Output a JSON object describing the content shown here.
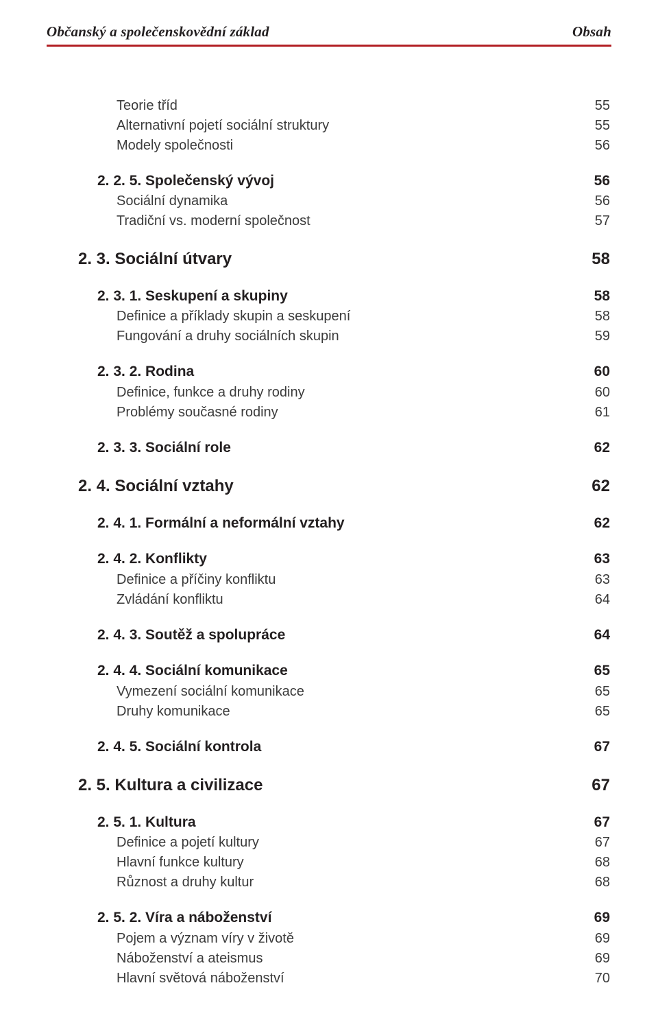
{
  "header": {
    "left": "Občanský a společenskovědní základ",
    "right": "Obsah"
  },
  "toc": [
    {
      "level": 3,
      "weight": "light",
      "label": "Teorie tříd",
      "page": "55",
      "mt": 0
    },
    {
      "level": 3,
      "weight": "light",
      "label": "Alternativní pojetí sociální struktury",
      "page": "55"
    },
    {
      "level": 3,
      "weight": "light",
      "label": "Modely společnosti",
      "page": "56"
    },
    {
      "level": 2,
      "weight": "bold",
      "label": "2. 2. 5. Společenský vývoj",
      "page": "56"
    },
    {
      "level": 3,
      "weight": "light",
      "label": "Sociální dynamika",
      "page": "56"
    },
    {
      "level": 3,
      "weight": "light",
      "label": "Tradiční vs. moderní společnost",
      "page": "57"
    },
    {
      "level": 1,
      "weight": "heavy",
      "label": "2. 3. Sociální útvary",
      "page": "58"
    },
    {
      "level": 2,
      "weight": "bold",
      "label": "2. 3. 1. Seskupení a skupiny",
      "page": "58"
    },
    {
      "level": 3,
      "weight": "light",
      "label": "Definice a příklady skupin a seskupení",
      "page": "58"
    },
    {
      "level": 3,
      "weight": "light",
      "label": "Fungování a druhy sociálních skupin",
      "page": "59"
    },
    {
      "level": 2,
      "weight": "bold",
      "label": "2. 3. 2. Rodina",
      "page": "60"
    },
    {
      "level": 3,
      "weight": "light",
      "label": "Definice, funkce a druhy rodiny",
      "page": "60"
    },
    {
      "level": 3,
      "weight": "light",
      "label": "Problémy současné rodiny",
      "page": "61"
    },
    {
      "level": 2,
      "weight": "bold",
      "label": "2. 3. 3. Sociální role",
      "page": "62"
    },
    {
      "level": 1,
      "weight": "heavy",
      "label": "2. 4. Sociální vztahy",
      "page": "62"
    },
    {
      "level": 2,
      "weight": "bold",
      "label": "2. 4. 1. Formální a neformální vztahy",
      "page": "62"
    },
    {
      "level": 2,
      "weight": "bold",
      "label": "2. 4. 2. Konflikty",
      "page": "63"
    },
    {
      "level": 3,
      "weight": "light",
      "label": "Definice a příčiny konfliktu",
      "page": "63"
    },
    {
      "level": 3,
      "weight": "light",
      "label": "Zvládání konfliktu",
      "page": "64"
    },
    {
      "level": 2,
      "weight": "bold",
      "label": "2. 4. 3. Soutěž a spolupráce",
      "page": "64"
    },
    {
      "level": 2,
      "weight": "bold",
      "label": "2. 4. 4. Sociální komunikace",
      "page": "65"
    },
    {
      "level": 3,
      "weight": "light",
      "label": "Vymezení sociální komunikace",
      "page": "65"
    },
    {
      "level": 3,
      "weight": "light",
      "label": "Druhy komunikace",
      "page": "65"
    },
    {
      "level": 2,
      "weight": "bold",
      "label": "2. 4. 5. Sociální kontrola",
      "page": "67"
    },
    {
      "level": 1,
      "weight": "heavy",
      "label": "2. 5. Kultura a civilizace",
      "page": "67"
    },
    {
      "level": 2,
      "weight": "bold",
      "label": "2. 5. 1. Kultura",
      "page": "67"
    },
    {
      "level": 3,
      "weight": "light",
      "label": "Definice a pojetí kultury",
      "page": "67"
    },
    {
      "level": 3,
      "weight": "light",
      "label": "Hlavní funkce kultury",
      "page": "68"
    },
    {
      "level": 3,
      "weight": "light",
      "label": "Různost a druhy kultur",
      "page": "68"
    },
    {
      "level": 2,
      "weight": "bold",
      "label": "2. 5. 2. Víra a náboženství",
      "page": "69"
    },
    {
      "level": 3,
      "weight": "light",
      "label": "Pojem a význam víry v životě",
      "page": "69"
    },
    {
      "level": 3,
      "weight": "light",
      "label": "Náboženství a ateismus",
      "page": "69"
    },
    {
      "level": 3,
      "weight": "light",
      "label": "Hlavní světová náboženství",
      "page": "70"
    }
  ]
}
